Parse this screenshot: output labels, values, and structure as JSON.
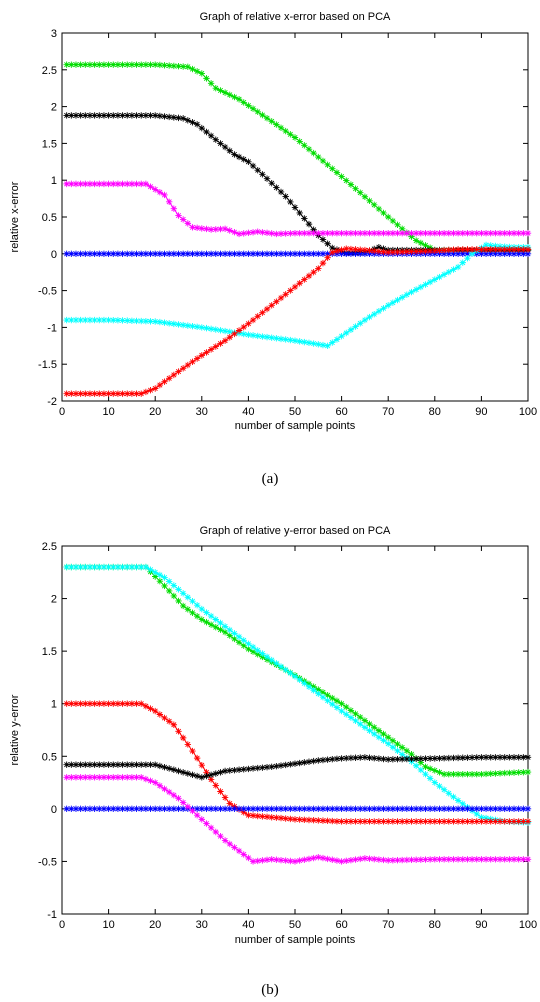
{
  "chart_data": [
    {
      "type": "line",
      "panel": "a",
      "caption": "(a)",
      "title": "Graph of relative x-error based on PCA",
      "xlabel": "number of sample points",
      "ylabel": "relative x-error",
      "xlim": [
        0,
        100
      ],
      "ylim": [
        -2,
        3
      ],
      "xticks": [
        "0",
        "10",
        "20",
        "30",
        "40",
        "50",
        "60",
        "70",
        "80",
        "90",
        "100"
      ],
      "yticks": [
        "-2",
        "-1.5",
        "-1",
        "-0.5",
        "0",
        "0.5",
        "1",
        "1.5",
        "2",
        "2.5",
        "3"
      ],
      "marker": "*",
      "grid": false,
      "series": [
        {
          "color": "#00dd00",
          "points": [
            [
              1,
              2.57
            ],
            [
              10,
              2.57
            ],
            [
              20,
              2.57
            ],
            [
              27,
              2.54
            ],
            [
              30,
              2.45
            ],
            [
              33,
              2.25
            ],
            [
              38,
              2.1
            ],
            [
              45,
              1.8
            ],
            [
              50,
              1.58
            ],
            [
              60,
              1.05
            ],
            [
              70,
              0.5
            ],
            [
              76,
              0.18
            ],
            [
              80,
              0.05
            ],
            [
              90,
              0.05
            ],
            [
              100,
              0.05
            ]
          ]
        },
        {
          "color": "#000000",
          "points": [
            [
              1,
              1.88
            ],
            [
              10,
              1.88
            ],
            [
              20,
              1.88
            ],
            [
              26,
              1.84
            ],
            [
              29,
              1.76
            ],
            [
              33,
              1.55
            ],
            [
              37,
              1.35
            ],
            [
              40,
              1.25
            ],
            [
              43,
              1.08
            ],
            [
              48,
              0.78
            ],
            [
              52,
              0.48
            ],
            [
              55,
              0.25
            ],
            [
              58,
              0.08
            ],
            [
              61,
              0.01
            ],
            [
              65,
              0.02
            ],
            [
              68,
              0.09
            ],
            [
              70,
              0.05
            ],
            [
              80,
              0.05
            ],
            [
              90,
              0.05
            ],
            [
              100,
              0.05
            ]
          ]
        },
        {
          "color": "#ff00ff",
          "points": [
            [
              1,
              0.95
            ],
            [
              10,
              0.95
            ],
            [
              18,
              0.95
            ],
            [
              22,
              0.8
            ],
            [
              25,
              0.52
            ],
            [
              28,
              0.36
            ],
            [
              32,
              0.33
            ],
            [
              35,
              0.34
            ],
            [
              38,
              0.27
            ],
            [
              42,
              0.3
            ],
            [
              46,
              0.27
            ],
            [
              50,
              0.28
            ],
            [
              60,
              0.28
            ],
            [
              70,
              0.28
            ],
            [
              80,
              0.28
            ],
            [
              90,
              0.28
            ],
            [
              100,
              0.28
            ]
          ]
        },
        {
          "color": "#0000ff",
          "points": [
            [
              1,
              0.0
            ],
            [
              25,
              0.0
            ],
            [
              50,
              0.0
            ],
            [
              75,
              0.0
            ],
            [
              100,
              0.0
            ]
          ]
        },
        {
          "color": "#00ffff",
          "points": [
            [
              1,
              -0.9
            ],
            [
              10,
              -0.9
            ],
            [
              20,
              -0.92
            ],
            [
              30,
              -1.0
            ],
            [
              40,
              -1.1
            ],
            [
              50,
              -1.18
            ],
            [
              57,
              -1.25
            ],
            [
              60,
              -1.12
            ],
            [
              65,
              -0.9
            ],
            [
              70,
              -0.7
            ],
            [
              75,
              -0.52
            ],
            [
              80,
              -0.35
            ],
            [
              85,
              -0.18
            ],
            [
              88,
              0.0
            ],
            [
              91,
              0.12
            ],
            [
              94,
              0.1
            ],
            [
              97,
              0.09
            ],
            [
              100,
              0.09
            ]
          ]
        },
        {
          "color": "#ff0000",
          "points": [
            [
              1,
              -1.9
            ],
            [
              10,
              -1.9
            ],
            [
              17,
              -1.9
            ],
            [
              20,
              -1.83
            ],
            [
              25,
              -1.6
            ],
            [
              30,
              -1.38
            ],
            [
              35,
              -1.18
            ],
            [
              40,
              -0.95
            ],
            [
              45,
              -0.7
            ],
            [
              50,
              -0.45
            ],
            [
              55,
              -0.2
            ],
            [
              58,
              0.02
            ],
            [
              61,
              0.07
            ],
            [
              65,
              0.05
            ],
            [
              70,
              0.02
            ],
            [
              75,
              0.03
            ],
            [
              80,
              0.04
            ],
            [
              85,
              0.06
            ],
            [
              90,
              0.06
            ],
            [
              100,
              0.06
            ]
          ]
        }
      ]
    },
    {
      "type": "line",
      "panel": "b",
      "caption": "(b)",
      "title": "Graph of relative y-error based on PCA",
      "xlabel": "number of sample points",
      "ylabel": "relative y-error",
      "xlim": [
        0,
        100
      ],
      "ylim": [
        -1,
        2.5
      ],
      "xticks": [
        "0",
        "10",
        "20",
        "30",
        "40",
        "50",
        "60",
        "70",
        "80",
        "90",
        "100"
      ],
      "yticks": [
        "-1",
        "-0.5",
        "0",
        "0.5",
        "1",
        "1.5",
        "2",
        "2.5"
      ],
      "marker": "*",
      "grid": false,
      "series": [
        {
          "color": "#00dd00",
          "points": [
            [
              1,
              2.3
            ],
            [
              10,
              2.3
            ],
            [
              18,
              2.3
            ],
            [
              22,
              2.12
            ],
            [
              26,
              1.93
            ],
            [
              30,
              1.8
            ],
            [
              35,
              1.68
            ],
            [
              40,
              1.52
            ],
            [
              50,
              1.27
            ],
            [
              60,
              1.0
            ],
            [
              70,
              0.68
            ],
            [
              75,
              0.52
            ],
            [
              78,
              0.4
            ],
            [
              82,
              0.33
            ],
            [
              90,
              0.33
            ],
            [
              100,
              0.35
            ]
          ]
        },
        {
          "color": "#00ffff",
          "points": [
            [
              1,
              2.3
            ],
            [
              10,
              2.3
            ],
            [
              18,
              2.3
            ],
            [
              22,
              2.2
            ],
            [
              30,
              1.9
            ],
            [
              40,
              1.57
            ],
            [
              50,
              1.26
            ],
            [
              60,
              0.93
            ],
            [
              70,
              0.62
            ],
            [
              75,
              0.45
            ],
            [
              80,
              0.25
            ],
            [
              85,
              0.08
            ],
            [
              90,
              -0.08
            ],
            [
              95,
              -0.12
            ],
            [
              100,
              -0.13
            ]
          ]
        },
        {
          "color": "#ff0000",
          "points": [
            [
              1,
              1.0
            ],
            [
              10,
              1.0
            ],
            [
              17,
              1.0
            ],
            [
              20,
              0.93
            ],
            [
              24,
              0.8
            ],
            [
              28,
              0.55
            ],
            [
              32,
              0.28
            ],
            [
              36,
              0.05
            ],
            [
              40,
              -0.06
            ],
            [
              45,
              -0.08
            ],
            [
              50,
              -0.1
            ],
            [
              60,
              -0.12
            ],
            [
              70,
              -0.12
            ],
            [
              80,
              -0.12
            ],
            [
              90,
              -0.12
            ],
            [
              100,
              -0.12
            ]
          ]
        },
        {
          "color": "#000000",
          "points": [
            [
              1,
              0.42
            ],
            [
              10,
              0.42
            ],
            [
              20,
              0.42
            ],
            [
              25,
              0.36
            ],
            [
              30,
              0.3
            ],
            [
              35,
              0.36
            ],
            [
              40,
              0.38
            ],
            [
              45,
              0.4
            ],
            [
              50,
              0.43
            ],
            [
              55,
              0.46
            ],
            [
              60,
              0.48
            ],
            [
              65,
              0.49
            ],
            [
              70,
              0.47
            ],
            [
              80,
              0.48
            ],
            [
              90,
              0.49
            ],
            [
              100,
              0.49
            ]
          ]
        },
        {
          "color": "#0000ff",
          "points": [
            [
              1,
              0.0
            ],
            [
              25,
              0.0
            ],
            [
              50,
              0.0
            ],
            [
              75,
              0.0
            ],
            [
              100,
              0.0
            ]
          ]
        },
        {
          "color": "#ff00ff",
          "points": [
            [
              1,
              0.3
            ],
            [
              10,
              0.3
            ],
            [
              17,
              0.3
            ],
            [
              20,
              0.25
            ],
            [
              25,
              0.1
            ],
            [
              30,
              -0.1
            ],
            [
              35,
              -0.3
            ],
            [
              38,
              -0.4
            ],
            [
              41,
              -0.5
            ],
            [
              45,
              -0.48
            ],
            [
              50,
              -0.5
            ],
            [
              55,
              -0.46
            ],
            [
              60,
              -0.5
            ],
            [
              65,
              -0.47
            ],
            [
              70,
              -0.49
            ],
            [
              80,
              -0.48
            ],
            [
              90,
              -0.48
            ],
            [
              100,
              -0.48
            ]
          ]
        }
      ]
    }
  ]
}
